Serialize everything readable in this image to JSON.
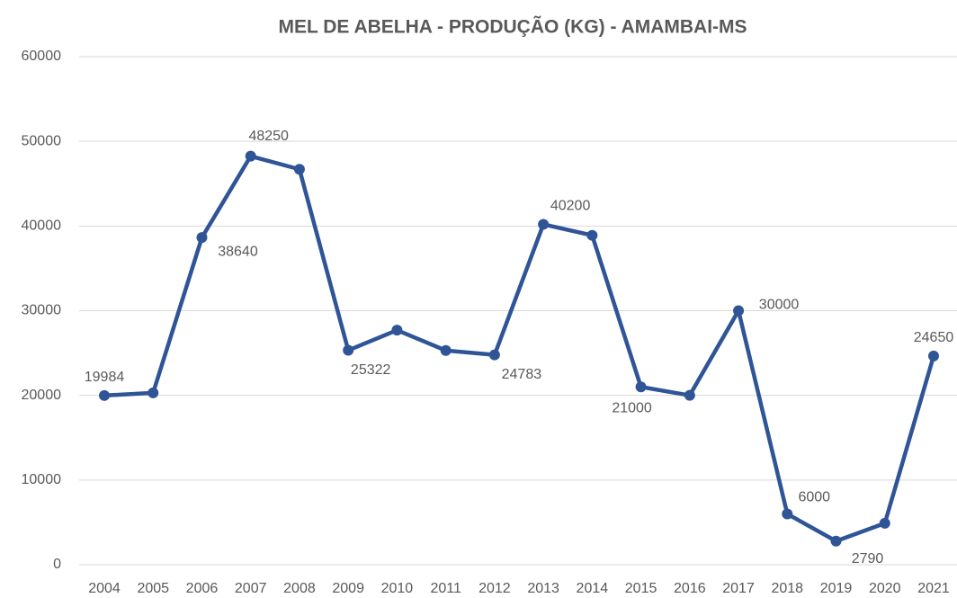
{
  "chart_data": {
    "type": "line",
    "title": "MEL DE ABELHA - PRODUÇÃO (KG) -  AMAMBAI-MS",
    "categories": [
      "2004",
      "2005",
      "2006",
      "2007",
      "2008",
      "2009",
      "2010",
      "2011",
      "2012",
      "2013",
      "2014",
      "2015",
      "2016",
      "2017",
      "2018",
      "2019",
      "2020",
      "2021"
    ],
    "series": [
      {
        "name": "Produção",
        "color": "#2f5597",
        "values": [
          19984,
          20300,
          38640,
          48250,
          46700,
          25322,
          27700,
          25300,
          24783,
          40200,
          38900,
          21000,
          20000,
          30000,
          6000,
          2790,
          4900,
          24650
        ]
      }
    ],
    "value_labels": [
      "19984",
      null,
      "38640",
      "48250",
      null,
      "25322",
      null,
      null,
      "24783",
      "40200",
      null,
      "21000",
      null,
      "30000",
      "6000",
      "2790",
      null,
      "24650"
    ],
    "ylim": [
      0,
      60000
    ],
    "yticks": [
      0,
      10000,
      20000,
      30000,
      40000,
      50000,
      60000
    ],
    "grid": true
  }
}
